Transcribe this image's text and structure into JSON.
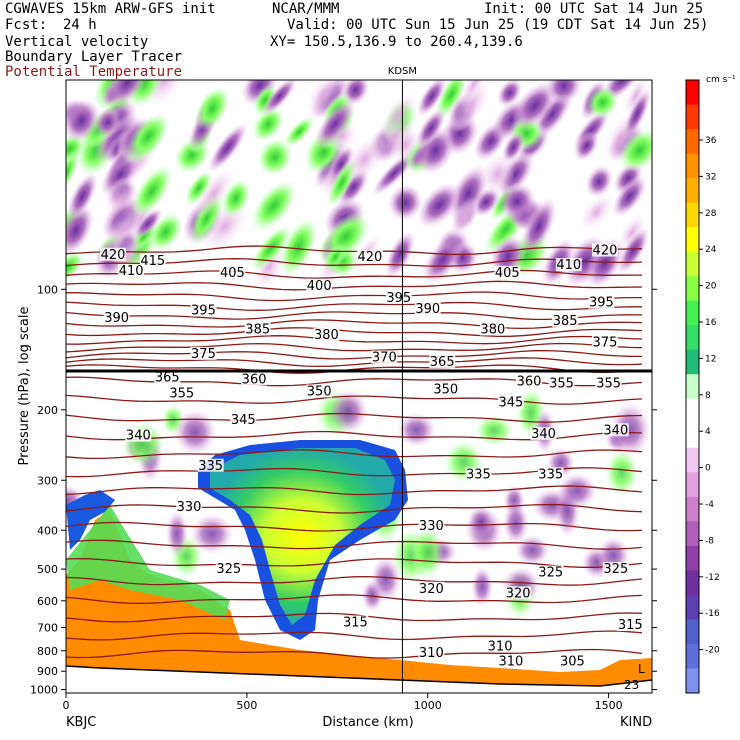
{
  "header": {
    "model_line": "CGWAVES 15km ARW-GFS init",
    "org": "NCAR/MMM",
    "init": "Init: 00 UTC Sat 14 Jun 25",
    "fcst_label": "Fcst:",
    "fcst_value": "24 h",
    "valid": "Valid: 00 UTC Sun 15 Jun 25 (19 CDT Sat 14 Jun 25)",
    "field1": "Vertical velocity",
    "field2": "Boundary Layer Tracer",
    "field3": "Potential Temperature",
    "xy": "XY= 150.5,136.9 to 260.4,139.6",
    "station_mark": "KDSM",
    "left_station": "KBJC",
    "right_station": "KIND",
    "colors": {
      "theta": "#8b1a1a",
      "text": "#000000"
    }
  },
  "chart_data": {
    "type": "heatmap",
    "xlabel": "Distance (km)",
    "ylabel": "Pressure (hPa), log scale",
    "x_ticks": [
      0,
      500,
      1000,
      1500
    ],
    "y_ticks": [
      100,
      200,
      300,
      400,
      500,
      600,
      700,
      800,
      900,
      1000
    ],
    "ylim": [
      1020,
      30
    ],
    "xlim": [
      0,
      1620
    ],
    "marker_x_km": 930,
    "colorbar": {
      "unit": "cm s⁻¹",
      "ticks": [
        "36",
        "32",
        "28",
        "24",
        "20",
        "16",
        "12",
        "8",
        "4",
        "0",
        "-4",
        "-8",
        "-12",
        "-16",
        "-20"
      ],
      "colors": [
        "#ff0000",
        "#ff3a00",
        "#ff6a00",
        "#ff9200",
        "#ffb000",
        "#ffd800",
        "#ffff00",
        "#ccff33",
        "#88ff44",
        "#44ee55",
        "#33dd66",
        "#22bb77",
        "#c8ffc8",
        "#ffffff",
        "#ffffff",
        "#f0c8f0",
        "#e2a2e2",
        "#cc80cc",
        "#b060b8",
        "#9040a8",
        "#7030a0",
        "#5a40b0",
        "#5060c8",
        "#6070d8",
        "#8090ee"
      ]
    },
    "theta_labels": [
      {
        "v": "420",
        "x": 130,
        "p": 82
      },
      {
        "v": "415",
        "x": 240,
        "p": 85
      },
      {
        "v": "410",
        "x": 180,
        "p": 90
      },
      {
        "v": "405",
        "x": 460,
        "p": 91
      },
      {
        "v": "400",
        "x": 700,
        "p": 98
      },
      {
        "v": "395",
        "x": 380,
        "p": 113
      },
      {
        "v": "390",
        "x": 140,
        "p": 118
      },
      {
        "v": "385",
        "x": 530,
        "p": 126
      },
      {
        "v": "380",
        "x": 720,
        "p": 130
      },
      {
        "v": "375",
        "x": 380,
        "p": 145
      },
      {
        "v": "370",
        "x": 880,
        "p": 148
      },
      {
        "v": "365",
        "x": 280,
        "p": 166
      },
      {
        "v": "360",
        "x": 520,
        "p": 168
      },
      {
        "v": "355",
        "x": 320,
        "p": 182
      },
      {
        "v": "350",
        "x": 700,
        "p": 180
      },
      {
        "v": "345",
        "x": 490,
        "p": 212
      },
      {
        "v": "340",
        "x": 200,
        "p": 232
      },
      {
        "v": "335",
        "x": 400,
        "p": 276
      },
      {
        "v": "330",
        "x": 340,
        "p": 350
      },
      {
        "v": "325",
        "x": 450,
        "p": 500
      },
      {
        "v": "320",
        "x": 1010,
        "p": 560
      },
      {
        "v": "315",
        "x": 800,
        "p": 680
      },
      {
        "v": "310",
        "x": 1200,
        "p": 780
      },
      {
        "v": "305",
        "x": 1400,
        "p": 850
      },
      {
        "v": "420",
        "x": 840,
        "p": 83
      },
      {
        "v": "405",
        "x": 1220,
        "p": 91
      },
      {
        "v": "410",
        "x": 1390,
        "p": 87
      },
      {
        "v": "420",
        "x": 1490,
        "p": 80
      },
      {
        "v": "395",
        "x": 920,
        "p": 105
      },
      {
        "v": "390",
        "x": 1000,
        "p": 112
      },
      {
        "v": "380",
        "x": 1180,
        "p": 126
      },
      {
        "v": "395",
        "x": 1480,
        "p": 108
      },
      {
        "v": "385",
        "x": 1380,
        "p": 120
      },
      {
        "v": "375",
        "x": 1490,
        "p": 136
      },
      {
        "v": "365",
        "x": 1040,
        "p": 152
      },
      {
        "v": "360",
        "x": 1280,
        "p": 170
      },
      {
        "v": "350",
        "x": 1050,
        "p": 178
      },
      {
        "v": "355",
        "x": 1370,
        "p": 172
      },
      {
        "v": "355",
        "x": 1500,
        "p": 172
      },
      {
        "v": "345",
        "x": 1230,
        "p": 192
      },
      {
        "v": "340",
        "x": 1320,
        "p": 230
      },
      {
        "v": "340",
        "x": 1520,
        "p": 225
      },
      {
        "v": "335",
        "x": 1140,
        "p": 290
      },
      {
        "v": "335",
        "x": 1340,
        "p": 290
      },
      {
        "v": "330",
        "x": 1010,
        "p": 390
      },
      {
        "v": "325",
        "x": 1340,
        "p": 510
      },
      {
        "v": "325",
        "x": 1520,
        "p": 500
      },
      {
        "v": "320",
        "x": 1250,
        "p": 575
      },
      {
        "v": "315",
        "x": 1560,
        "p": 690
      },
      {
        "v": "310",
        "x": 1010,
        "p": 810
      },
      {
        "v": "310",
        "x": 1230,
        "p": 850
      }
    ],
    "corner_labels": [
      "L",
      "23"
    ]
  }
}
